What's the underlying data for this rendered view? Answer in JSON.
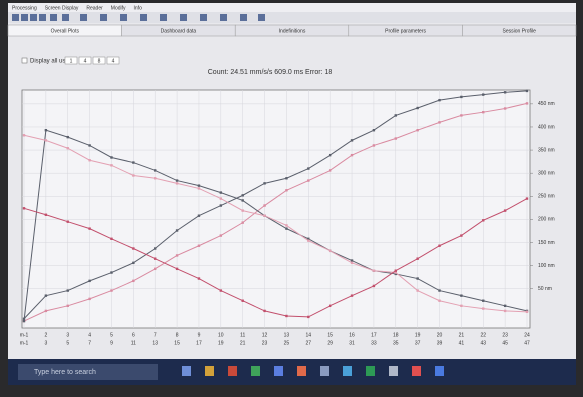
{
  "menu": {
    "items": [
      "Processing",
      "Screen Display",
      "Reader",
      "Modify",
      "Info"
    ]
  },
  "tabs": [
    "Overall Plots",
    "Dashboard data",
    "Indefinitions",
    "Profile parameters",
    "Session Profile"
  ],
  "options": {
    "checkbox_label": "Display all used",
    "fields": [
      "1",
      "4",
      "8",
      "4"
    ]
  },
  "chart_data": {
    "type": "line",
    "title": "Count: 24.51 mm/s/s 609.0 ms Error: 18",
    "categories": [
      "m-1",
      "2",
      "3",
      "4",
      "5",
      "6",
      "7",
      "8",
      "9",
      "10",
      "11",
      "12",
      "13",
      "14",
      "15",
      "16",
      "17",
      "18",
      "19",
      "20",
      "21",
      "22",
      "23",
      "24"
    ],
    "categories_secondary": [
      "m-1",
      "3",
      "5",
      "7",
      "9",
      "11",
      "13",
      "15",
      "17",
      "19",
      "21",
      "23",
      "25",
      "27",
      "29",
      "31",
      "33",
      "35",
      "37",
      "39",
      "41",
      "43",
      "45",
      "47"
    ],
    "series": [
      {
        "color": "#5a5f6b",
        "values": [
          -15,
          35,
          46,
          67,
          85,
          106,
          137,
          176,
          208,
          230,
          252,
          278,
          289,
          310,
          339,
          371,
          393,
          425,
          441,
          458,
          465,
          470,
          475,
          478
        ]
      },
      {
        "color": "#d98aa0",
        "values": [
          -20,
          2,
          13,
          28,
          46,
          67,
          93,
          122,
          143,
          165,
          193,
          230,
          263,
          284,
          306,
          339,
          360,
          375,
          393,
          410,
          425,
          432,
          440,
          451
        ]
      },
      {
        "color": "#5a5f6b",
        "values": [
          -20,
          393,
          378,
          360,
          334,
          323,
          306,
          284,
          273,
          258,
          241,
          208,
          180,
          158,
          132,
          111,
          89,
          82,
          72,
          46,
          35,
          24,
          13,
          2
        ]
      },
      {
        "color": "#e3a0b2",
        "values": [
          382,
          371,
          354,
          328,
          317,
          295,
          289,
          278,
          267,
          245,
          219,
          208,
          187,
          154,
          132,
          106,
          89,
          85,
          46,
          24,
          13,
          7,
          2,
          0
        ]
      },
      {
        "color": "#c24f6c",
        "values": [
          224,
          210,
          195,
          180,
          158,
          137,
          115,
          93,
          72,
          46,
          24,
          2,
          -9,
          -11,
          13,
          35,
          56,
          89,
          115,
          143,
          165,
          198,
          219,
          245
        ]
      }
    ],
    "ylim": [
      -35,
      480
    ],
    "yticks": [
      {
        "value": 450,
        "label": "450 nm"
      },
      {
        "value": 400,
        "label": "400 nm"
      },
      {
        "value": 350,
        "label": "350 nm"
      },
      {
        "value": 300,
        "label": "300 nm"
      },
      {
        "value": 250,
        "label": "250 nm"
      },
      {
        "value": 200,
        "label": "200 nm"
      },
      {
        "value": 150,
        "label": "150 nm"
      },
      {
        "value": 100,
        "label": "100 nm"
      },
      {
        "value": 50,
        "label": "50 nm"
      }
    ],
    "grid": true
  },
  "taskbar": {
    "search": "Type here to search"
  }
}
